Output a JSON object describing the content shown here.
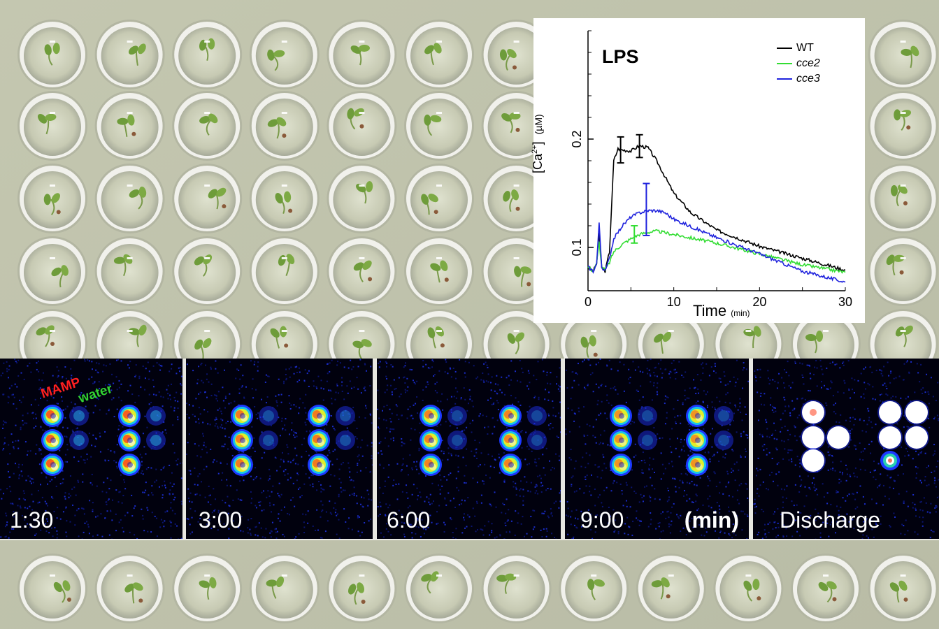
{
  "figure": {
    "image_strip": {
      "legend": {
        "mamp": "MAMP",
        "water": "water"
      },
      "panels": [
        {
          "time": "1:30"
        },
        {
          "time": "3:00"
        },
        {
          "time": "6:00"
        },
        {
          "time": "9:00",
          "unit": "(min)"
        },
        {
          "time": "Discharge"
        }
      ]
    },
    "inset_chart": {
      "title": "LPS",
      "xlabel": "Time",
      "xunit": "(min)",
      "ylabel": "[Ca2+]",
      "yunit": "(µM)"
    }
  },
  "chart_data": {
    "type": "line",
    "title": "LPS",
    "xlabel": "Time (min)",
    "ylabel": "[Ca2+] (µM)",
    "xlim": [
      0,
      30
    ],
    "ylim": [
      0.06,
      0.3
    ],
    "xticks": [
      0,
      10,
      20,
      30
    ],
    "yticks": [
      0.1,
      0.2
    ],
    "legend_position": "top-right",
    "series": [
      {
        "name": "WT",
        "color": "#000000",
        "x": [
          0,
          0.6,
          1.0,
          1.3,
          1.6,
          2.0,
          2.5,
          3.0,
          3.5,
          4.0,
          5.0,
          6.0,
          7.0,
          8.0,
          10.0,
          12.0,
          15.0,
          18.0,
          20.0,
          25.0,
          30.0
        ],
        "y": [
          0.082,
          0.078,
          0.085,
          0.112,
          0.082,
          0.078,
          0.096,
          0.18,
          0.191,
          0.19,
          0.189,
          0.194,
          0.192,
          0.18,
          0.15,
          0.132,
          0.116,
          0.107,
          0.101,
          0.09,
          0.079
        ]
      },
      {
        "name": "cce2",
        "color": "#33dd33",
        "x": [
          0,
          0.6,
          1.0,
          1.3,
          1.6,
          2.0,
          2.5,
          3.0,
          4.0,
          5.0,
          6.0,
          7.0,
          8.0,
          10.0,
          15.0,
          20.0,
          25.0,
          30.0
        ],
        "y": [
          0.082,
          0.078,
          0.085,
          0.105,
          0.082,
          0.079,
          0.086,
          0.096,
          0.103,
          0.108,
          0.112,
          0.114,
          0.115,
          0.112,
          0.104,
          0.094,
          0.084,
          0.077
        ]
      },
      {
        "name": "cce3",
        "color": "#1f22dd",
        "x": [
          0,
          0.6,
          1.0,
          1.3,
          1.6,
          2.0,
          2.5,
          3.0,
          4.0,
          5.0,
          6.0,
          7.0,
          8.0,
          9.0,
          10.0,
          15.0,
          20.0,
          25.0,
          30.0
        ],
        "y": [
          0.082,
          0.078,
          0.085,
          0.122,
          0.082,
          0.078,
          0.09,
          0.108,
          0.12,
          0.128,
          0.132,
          0.134,
          0.134,
          0.132,
          0.126,
          0.109,
          0.094,
          0.078,
          0.068
        ]
      }
    ],
    "error_bars": [
      {
        "series": "WT",
        "x": 3.8,
        "y": 0.19,
        "low": 0.178,
        "high": 0.202
      },
      {
        "series": "WT",
        "x": 6.0,
        "y": 0.194,
        "low": 0.183,
        "high": 0.204
      },
      {
        "series": "cce2",
        "x": 5.4,
        "y": 0.111,
        "low": 0.104,
        "high": 0.12
      },
      {
        "series": "cce3",
        "x": 6.8,
        "y": 0.134,
        "low": 0.111,
        "high": 0.159
      }
    ]
  }
}
